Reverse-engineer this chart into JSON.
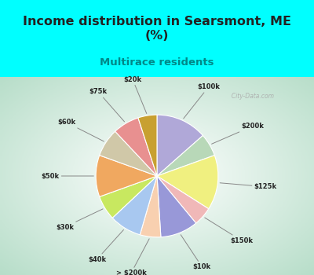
{
  "title": "Income distribution in Searsmont, ME\n(%)",
  "subtitle": "Multirace residents",
  "slices": [
    {
      "label": "$100k",
      "value": 13.5,
      "color": "#b0a8d8"
    },
    {
      "label": "$200k",
      "value": 6.0,
      "color": "#b8d8b8"
    },
    {
      "label": "$125k",
      "value": 14.5,
      "color": "#f0f080"
    },
    {
      "label": "$150k",
      "value": 5.0,
      "color": "#f0b8b8"
    },
    {
      "label": "$10k",
      "value": 10.0,
      "color": "#9898d8"
    },
    {
      "label": "> $200k",
      "value": 5.5,
      "color": "#f8d0b0"
    },
    {
      "label": "$40k",
      "value": 8.5,
      "color": "#a8c8f0"
    },
    {
      "label": "$30k",
      "value": 6.5,
      "color": "#c8e860"
    },
    {
      "label": "$50k",
      "value": 11.0,
      "color": "#f0a860"
    },
    {
      "label": "$60k",
      "value": 7.5,
      "color": "#d0c8a8"
    },
    {
      "label": "$75k",
      "value": 7.0,
      "color": "#e89090"
    },
    {
      "label": "$20k",
      "value": 5.0,
      "color": "#c8a030"
    }
  ],
  "startangle": 90,
  "title_color": "#222222",
  "subtitle_color": "#008888",
  "watermark": "  City-Data.com",
  "bg_cyan": "#00ffff",
  "bg_chart_center": "#ffffff",
  "bg_chart_edge": "#b8ddc8"
}
